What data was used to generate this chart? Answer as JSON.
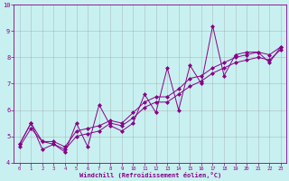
{
  "xlabel": "Windchill (Refroidissement éolien,°C)",
  "bg_color": "#c8f0f0",
  "grid_color": "#999999",
  "line_color": "#880088",
  "xlim": [
    -0.5,
    23.5
  ],
  "ylim": [
    4,
    10
  ],
  "xticks": [
    0,
    1,
    2,
    3,
    4,
    5,
    6,
    7,
    8,
    9,
    10,
    11,
    12,
    13,
    14,
    15,
    16,
    17,
    18,
    19,
    20,
    21,
    22,
    23
  ],
  "yticks": [
    4,
    5,
    6,
    7,
    8,
    9,
    10
  ],
  "line1_x": [
    0,
    1,
    2,
    3,
    4,
    5,
    6,
    7,
    8,
    9,
    10,
    11,
    12,
    13,
    14,
    15,
    16,
    17,
    18,
    19,
    20,
    21,
    22,
    23
  ],
  "line1_y": [
    4.7,
    5.5,
    4.5,
    4.7,
    4.4,
    5.5,
    4.6,
    6.2,
    5.4,
    5.2,
    5.5,
    6.6,
    5.9,
    7.6,
    6.0,
    7.7,
    7.0,
    9.2,
    7.3,
    8.1,
    8.2,
    8.2,
    7.8,
    8.4
  ],
  "line2_x": [
    0,
    1,
    2,
    3,
    4,
    5,
    6,
    7,
    8,
    9,
    10,
    11,
    12,
    13,
    14,
    15,
    16,
    17,
    18,
    19,
    20,
    21,
    22,
    23
  ],
  "line2_y": [
    4.7,
    5.5,
    4.8,
    4.8,
    4.6,
    5.2,
    5.3,
    5.4,
    5.6,
    5.5,
    5.9,
    6.3,
    6.5,
    6.5,
    6.8,
    7.2,
    7.3,
    7.6,
    7.8,
    8.0,
    8.1,
    8.2,
    8.1,
    8.4
  ],
  "line3_x": [
    0,
    1,
    2,
    3,
    4,
    5,
    6,
    7,
    8,
    9,
    10,
    11,
    12,
    13,
    14,
    15,
    16,
    17,
    18,
    19,
    20,
    21,
    22,
    23
  ],
  "line3_y": [
    4.6,
    5.3,
    4.8,
    4.7,
    4.5,
    5.0,
    5.1,
    5.2,
    5.5,
    5.4,
    5.7,
    6.1,
    6.3,
    6.3,
    6.6,
    6.9,
    7.1,
    7.4,
    7.6,
    7.8,
    7.9,
    8.0,
    7.9,
    8.3
  ]
}
